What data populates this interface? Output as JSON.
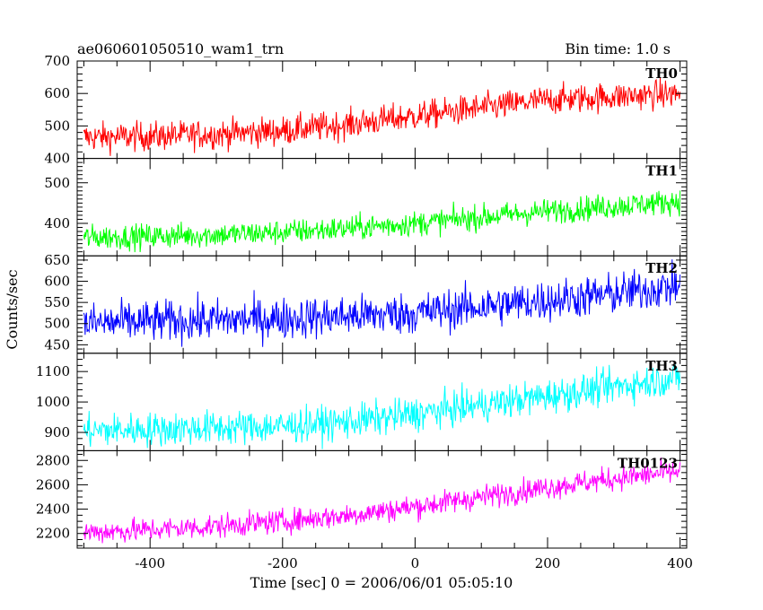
{
  "chart_data": {
    "type": "line",
    "title": "ae060601050510_wam1_trn",
    "bin_time": "Bin time: 1.0 s",
    "xlabel": "Time [sec] 0 = 2006/06/01 05:05:10",
    "ylabel": "Counts/sec",
    "xlim": [
      -510,
      410
    ],
    "x_ticks": [
      -400,
      -200,
      0,
      200,
      400
    ],
    "x_range": [
      -500,
      400
    ],
    "grid": false,
    "series": [
      {
        "name": "TH0",
        "color": "#ff0000",
        "ylim": [
          400,
          700
        ],
        "y_ticks": [
          400,
          500,
          600,
          700
        ],
        "trend": [
          [
            -500,
            465
          ],
          [
            -400,
            468
          ],
          [
            -300,
            475
          ],
          [
            -200,
            485
          ],
          [
            -100,
            505
          ],
          [
            0,
            530
          ],
          [
            100,
            555
          ],
          [
            200,
            580
          ],
          [
            300,
            590
          ],
          [
            400,
            600
          ]
        ],
        "noise": 32
      },
      {
        "name": "TH1",
        "color": "#00ff00",
        "ylim": [
          320,
          560
        ],
        "y_ticks": [
          400,
          500
        ],
        "trend": [
          [
            -500,
            365
          ],
          [
            -400,
            368
          ],
          [
            -300,
            372
          ],
          [
            -200,
            378
          ],
          [
            -100,
            388
          ],
          [
            0,
            400
          ],
          [
            100,
            415
          ],
          [
            200,
            430
          ],
          [
            300,
            442
          ],
          [
            400,
            455
          ]
        ],
        "noise": 22
      },
      {
        "name": "TH2",
        "color": "#0000ff",
        "ylim": [
          430,
          660
        ],
        "y_ticks": [
          450,
          500,
          550,
          600,
          650
        ],
        "trend": [
          [
            -500,
            500
          ],
          [
            -400,
            505
          ],
          [
            -300,
            508
          ],
          [
            -200,
            512
          ],
          [
            -100,
            518
          ],
          [
            0,
            525
          ],
          [
            100,
            540
          ],
          [
            200,
            555
          ],
          [
            300,
            570
          ],
          [
            400,
            590
          ]
        ],
        "noise": 35
      },
      {
        "name": "TH3",
        "color": "#00ffff",
        "ylim": [
          840,
          1160
        ],
        "y_ticks": [
          900,
          1000,
          1100
        ],
        "trend": [
          [
            -500,
            905
          ],
          [
            -400,
            910
          ],
          [
            -300,
            915
          ],
          [
            -200,
            920
          ],
          [
            -100,
            935
          ],
          [
            0,
            960
          ],
          [
            100,
            990
          ],
          [
            200,
            1020
          ],
          [
            300,
            1050
          ],
          [
            400,
            1080
          ]
        ],
        "noise": 40
      },
      {
        "name": "TH0123",
        "color": "#ff00ff",
        "ylim": [
          2080,
          2880
        ],
        "y_ticks": [
          2200,
          2400,
          2600,
          2800
        ],
        "trend": [
          [
            -500,
            2210
          ],
          [
            -400,
            2230
          ],
          [
            -300,
            2260
          ],
          [
            -200,
            2300
          ],
          [
            -100,
            2350
          ],
          [
            0,
            2420
          ],
          [
            100,
            2500
          ],
          [
            200,
            2580
          ],
          [
            300,
            2650
          ],
          [
            400,
            2710
          ]
        ],
        "noise": 70
      }
    ]
  }
}
